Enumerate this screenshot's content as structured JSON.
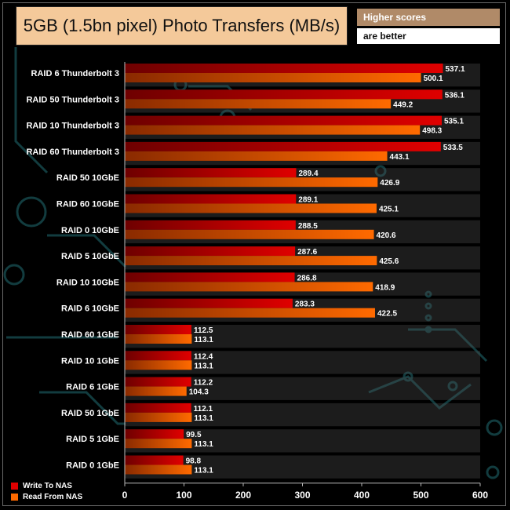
{
  "title": "5GB (1.5bn pixel) Photo Transfers (MB/s)",
  "note_line1": "Higher scores",
  "note_line2": "are better",
  "colors": {
    "write": "#e00000",
    "write_dark": "#6e0000",
    "read": "#ff6a00",
    "read_dark": "#8a2a00",
    "title_bg": "#f4c99a",
    "note_bg": "#b08a68"
  },
  "chart_data": {
    "type": "bar",
    "orientation": "horizontal",
    "title": "5GB (1.5bn pixel) Photo Transfers (MB/s)",
    "categories": [
      "RAID 6 Thunderbolt 3",
      "RAID 50 Thunderbolt 3",
      "RAID 10 Thunderbolt 3",
      "RAID 60 Thunderbolt 3",
      "RAID 50 10GbE",
      "RAID 60 10GbE",
      "RAID 0 10GbE",
      "RAID 5 10GbE",
      "RAID 10 10GbE",
      "RAID 6 10GbE",
      "RAID 60 1GbE",
      "RAID 10 1GbE",
      "RAID 6 1GbE",
      "RAID 50 1GbE",
      "RAID 5 1GbE",
      "RAID 0 1GbE"
    ],
    "series": [
      {
        "name": "Write To NAS",
        "color": "#e00000",
        "values": [
          537.1,
          536.1,
          535.1,
          533.5,
          289.4,
          289.1,
          288.5,
          287.6,
          286.8,
          283.3,
          112.5,
          112.4,
          112.2,
          112.1,
          99.5,
          98.8
        ]
      },
      {
        "name": "Read From NAS",
        "color": "#ff6a00",
        "values": [
          500.1,
          449.2,
          498.3,
          443.1,
          426.9,
          425.1,
          420.6,
          425.6,
          418.9,
          422.5,
          113.1,
          113.1,
          104.3,
          113.1,
          113.1,
          113.1
        ]
      }
    ],
    "xlim": [
      0,
      600
    ],
    "xticks": [
      0,
      100,
      200,
      300,
      400,
      500,
      600
    ],
    "legend_position": "bottom-left",
    "grid": false
  }
}
